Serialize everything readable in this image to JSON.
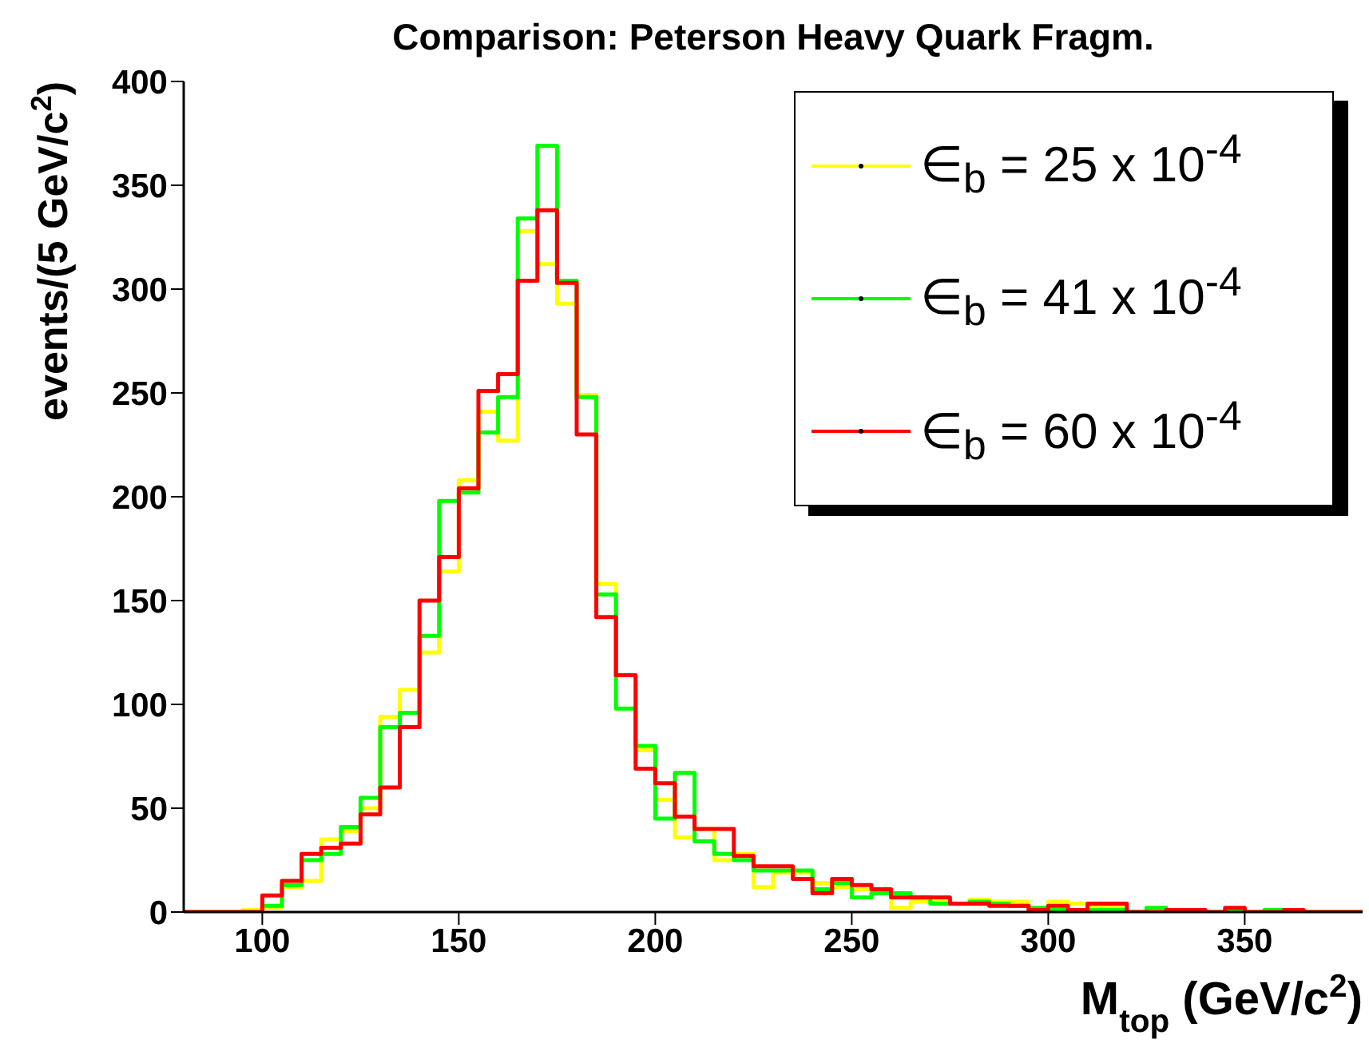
{
  "chart_data": {
    "type": "histogram",
    "title": "Comparison: Peterson Heavy Quark Fragm.",
    "xlabel": "M$_{top}$ (GeV/c$^{2}$)",
    "ylabel": "events/(5 GeV/c$^{2}$)",
    "bins": [
      80,
      85,
      90,
      95,
      100,
      105,
      110,
      115,
      120,
      125,
      130,
      135,
      140,
      145,
      150,
      155,
      160,
      165,
      170,
      175,
      180,
      185,
      190,
      195,
      200,
      205,
      210,
      215,
      220,
      225,
      230,
      235,
      240,
      245,
      250,
      255,
      260,
      265,
      270,
      275,
      280,
      285,
      290,
      295,
      300,
      305,
      310,
      315,
      320,
      325,
      330,
      335,
      340,
      345,
      350,
      355,
      360,
      365,
      370,
      375,
      380
    ],
    "series": [
      {
        "name": "∈$_{b}$ = 25 x 10$^{-4}$",
        "color": "#ffff00",
        "values": [
          0,
          0,
          0,
          1,
          2,
          12,
          15,
          35,
          39,
          50,
          94,
          107,
          125,
          164,
          208,
          241,
          227,
          328,
          312,
          293,
          249,
          158,
          114,
          78,
          54,
          36,
          40,
          25,
          28,
          12,
          19,
          19,
          14,
          12,
          11,
          9,
          2,
          5,
          5,
          4,
          6,
          5,
          5,
          1,
          5,
          4,
          3,
          2,
          0,
          1,
          1,
          0,
          0,
          0,
          0,
          0,
          0,
          0,
          0,
          0
        ]
      },
      {
        "name": "∈$_{b}$ = 41 x 10$^{-4}$",
        "color": "#00ff00",
        "values": [
          0,
          0,
          0,
          0,
          3,
          13,
          25,
          28,
          41,
          55,
          89,
          96,
          133,
          198,
          202,
          231,
          248,
          334,
          369,
          304,
          248,
          153,
          98,
          80,
          45,
          67,
          34,
          28,
          25,
          20,
          20,
          20,
          11,
          14,
          7,
          9,
          9,
          7,
          4,
          4,
          5,
          4,
          3,
          2,
          1,
          1,
          1,
          1,
          0,
          2,
          1,
          0,
          0,
          1,
          0,
          1,
          0,
          0,
          0,
          0
        ]
      },
      {
        "name": "∈$_{b}$ = 60 x 10$^{-4}$",
        "color": "#ff0000",
        "values": [
          0,
          0,
          0,
          0,
          8,
          15,
          28,
          31,
          33,
          47,
          60,
          89,
          150,
          171,
          204,
          251,
          259,
          304,
          338,
          303,
          230,
          142,
          114,
          69,
          62,
          46,
          40,
          40,
          27,
          22,
          22,
          16,
          9,
          16,
          13,
          11,
          7,
          7,
          7,
          4,
          4,
          3,
          3,
          1,
          3,
          1,
          4,
          4,
          0,
          0,
          1,
          1,
          0,
          2,
          0,
          0,
          1,
          0,
          0,
          0
        ]
      }
    ],
    "xlim": [
      80,
      380
    ],
    "xticks": [
      100,
      150,
      200,
      250,
      300,
      350
    ],
    "ylim": [
      0,
      400
    ],
    "yticks": [
      0,
      50,
      100,
      150,
      200,
      250,
      300,
      350,
      400
    ],
    "legend": "top right"
  }
}
